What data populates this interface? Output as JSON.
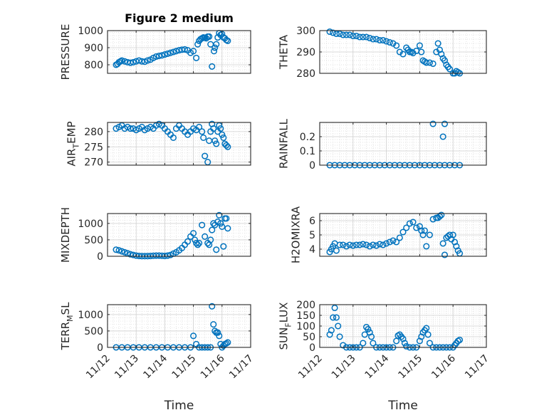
{
  "figure_title": "Figure 2 medium",
  "colors": {
    "marker": "#0072BD",
    "axis": "#262626",
    "grid": "#d9d9d9",
    "background": "#ffffff"
  },
  "chart_data": [
    {
      "type": "scatter",
      "ylabel": "PRESSURE",
      "title": "Figure 2 medium",
      "xlim": [
        0,
        5
      ],
      "ylim": [
        750,
        1000
      ],
      "yticks": [
        800,
        900,
        1000
      ],
      "ytick_labels": [
        "800",
        "900",
        "1000"
      ],
      "xtick_labels": [],
      "grid": true,
      "marker": "circle",
      "x": [
        0.3,
        0.35,
        0.4,
        0.45,
        0.5,
        0.6,
        0.7,
        0.8,
        0.9,
        1.0,
        1.1,
        1.2,
        1.3,
        1.4,
        1.5,
        1.6,
        1.7,
        1.8,
        1.9,
        2.0,
        2.1,
        2.2,
        2.3,
        2.4,
        2.5,
        2.6,
        2.7,
        2.8,
        2.9,
        3.0,
        3.1,
        3.15,
        3.2,
        3.25,
        3.3,
        3.35,
        3.4,
        3.45,
        3.5,
        3.55,
        3.6,
        3.65,
        3.7,
        3.72,
        3.75,
        3.8,
        3.85,
        3.9,
        3.95,
        4.0,
        4.05,
        4.1,
        4.15,
        4.2
      ],
      "y": [
        800,
        805,
        815,
        820,
        825,
        820,
        815,
        812,
        815,
        820,
        825,
        820,
        818,
        825,
        830,
        840,
        848,
        852,
        855,
        860,
        865,
        870,
        875,
        880,
        885,
        888,
        890,
        885,
        870,
        880,
        840,
        920,
        940,
        950,
        955,
        960,
        958,
        955,
        965,
        965,
        920,
        790,
        745,
        880,
        900,
        920,
        960,
        985,
        975,
        980,
        960,
        955,
        945,
        940
      ]
    },
    {
      "type": "scatter",
      "ylabel": "THETA",
      "xlim": [
        0,
        5
      ],
      "ylim": [
        280,
        300
      ],
      "yticks": [
        280,
        290,
        300
      ],
      "ytick_labels": [
        "280",
        "290",
        "300"
      ],
      "xtick_labels": [],
      "grid": true,
      "marker": "circle",
      "x": [
        0.3,
        0.4,
        0.5,
        0.6,
        0.7,
        0.8,
        0.9,
        1.0,
        1.1,
        1.2,
        1.3,
        1.4,
        1.5,
        1.6,
        1.7,
        1.8,
        1.9,
        2.0,
        2.1,
        2.2,
        2.3,
        2.4,
        2.5,
        2.6,
        2.65,
        2.7,
        2.75,
        2.8,
        2.9,
        3.0,
        3.05,
        3.1,
        3.15,
        3.2,
        3.3,
        3.4,
        3.5,
        3.55,
        3.6,
        3.65,
        3.7,
        3.75,
        3.8,
        3.85,
        3.9,
        4.0,
        4.05,
        4.1,
        4.15,
        4.2
      ],
      "y": [
        299.5,
        299,
        298.5,
        298.5,
        298,
        298,
        298,
        297.5,
        297.5,
        297,
        297,
        297,
        296.5,
        296,
        296,
        295.5,
        295.5,
        295,
        294.5,
        294,
        293,
        290,
        289,
        292,
        291,
        290,
        290,
        289.5,
        290.5,
        293,
        290,
        286,
        285.5,
        285,
        285,
        284.5,
        290,
        294,
        291,
        289,
        287,
        286,
        284,
        283,
        282,
        280,
        280,
        281,
        280.5,
        280
      ]
    },
    {
      "type": "scatter",
      "ylabel": "AIR_TEMP",
      "xlim": [
        0,
        5
      ],
      "ylim": [
        269,
        283
      ],
      "yticks": [
        270,
        275,
        280
      ],
      "ytick_labels": [
        "270",
        "275",
        "280"
      ],
      "xtick_labels": [],
      "grid": true,
      "marker": "circle",
      "x": [
        0.3,
        0.4,
        0.5,
        0.6,
        0.7,
        0.8,
        0.9,
        1.0,
        1.1,
        1.2,
        1.3,
        1.4,
        1.5,
        1.6,
        1.7,
        1.8,
        1.9,
        2.0,
        2.1,
        2.2,
        2.3,
        2.4,
        2.5,
        2.6,
        2.7,
        2.8,
        2.9,
        3.0,
        3.1,
        3.2,
        3.3,
        3.35,
        3.4,
        3.5,
        3.55,
        3.6,
        3.65,
        3.7,
        3.75,
        3.8,
        3.85,
        3.9,
        3.95,
        4.0,
        4.05,
        4.1,
        4.15,
        4.2
      ],
      "y": [
        281,
        281.5,
        282,
        281,
        281.5,
        281,
        281,
        280.5,
        281,
        281.5,
        280.5,
        281,
        281.5,
        281,
        282,
        282.5,
        282,
        281,
        280,
        279,
        278,
        281,
        282,
        281,
        280,
        279,
        280,
        281,
        280.5,
        281.5,
        280,
        278,
        272,
        270,
        277,
        280,
        282.5,
        281,
        277,
        276,
        280,
        282,
        281,
        279,
        278,
        276,
        275.5,
        275
      ]
    },
    {
      "type": "scatter",
      "ylabel": "RAINFALL",
      "xlim": [
        0,
        5
      ],
      "ylim": [
        0,
        0.3
      ],
      "yticks": [
        0,
        0.1,
        0.2
      ],
      "ytick_labels": [
        "0",
        "0.1",
        "0.2"
      ],
      "xtick_labels": [],
      "grid": true,
      "marker": "circle",
      "x": [
        0.3,
        0.45,
        0.6,
        0.75,
        0.9,
        1.05,
        1.2,
        1.35,
        1.5,
        1.65,
        1.8,
        1.95,
        2.1,
        2.25,
        2.4,
        2.55,
        2.7,
        2.85,
        3.0,
        3.15,
        3.3,
        3.45,
        3.6,
        3.75,
        3.9,
        4.05,
        4.2,
        3.4,
        3.7,
        3.75
      ],
      "y": [
        0,
        0,
        0,
        0,
        0,
        0,
        0,
        0,
        0,
        0,
        0,
        0,
        0,
        0,
        0,
        0,
        0,
        0,
        0,
        0,
        0,
        0,
        0,
        0,
        0,
        0,
        0,
        0.29,
        0.2,
        0.29
      ]
    },
    {
      "type": "scatter",
      "ylabel": "MIXDEPTH",
      "xlim": [
        0,
        5
      ],
      "ylim": [
        0,
        1300
      ],
      "yticks": [
        0,
        500,
        1000
      ],
      "ytick_labels": [
        "0",
        "500",
        "1000"
      ],
      "xtick_labels": [],
      "grid": true,
      "marker": "circle",
      "x": [
        0.3,
        0.4,
        0.5,
        0.6,
        0.7,
        0.8,
        0.9,
        1.0,
        1.1,
        1.2,
        1.3,
        1.4,
        1.5,
        1.6,
        1.7,
        1.8,
        1.9,
        2.0,
        2.1,
        2.2,
        2.3,
        2.4,
        2.5,
        2.6,
        2.7,
        2.8,
        2.9,
        3.0,
        3.05,
        3.1,
        3.15,
        3.2,
        3.3,
        3.4,
        3.5,
        3.55,
        3.6,
        3.65,
        3.7,
        3.75,
        3.8,
        3.85,
        3.9,
        3.95,
        4.0,
        4.05,
        4.1,
        4.15,
        4.2
      ],
      "y": [
        200,
        180,
        150,
        120,
        90,
        60,
        40,
        20,
        10,
        5,
        5,
        5,
        10,
        15,
        20,
        20,
        15,
        10,
        20,
        40,
        80,
        120,
        180,
        250,
        350,
        450,
        600,
        700,
        500,
        400,
        350,
        400,
        950,
        600,
        400,
        350,
        500,
        800,
        1000,
        950,
        200,
        1050,
        1250,
        1000,
        900,
        300,
        1150,
        1150,
        850
      ]
    },
    {
      "type": "scatter",
      "ylabel": "H2OMIXRA",
      "xlim": [
        0,
        5
      ],
      "ylim": [
        3.5,
        6.5
      ],
      "yticks": [
        4,
        5,
        6
      ],
      "ytick_labels": [
        "4",
        "5",
        "6"
      ],
      "xtick_labels": [],
      "grid": true,
      "marker": "circle",
      "x": [
        0.3,
        0.35,
        0.4,
        0.45,
        0.5,
        0.6,
        0.7,
        0.8,
        0.9,
        1.0,
        1.1,
        1.2,
        1.3,
        1.4,
        1.5,
        1.6,
        1.7,
        1.8,
        1.9,
        2.0,
        2.1,
        2.2,
        2.3,
        2.4,
        2.5,
        2.6,
        2.7,
        2.8,
        2.9,
        3.0,
        3.05,
        3.1,
        3.15,
        3.2,
        3.3,
        3.4,
        3.5,
        3.55,
        3.6,
        3.65,
        3.7,
        3.75,
        3.8,
        3.85,
        3.9,
        3.95,
        4.0,
        4.05,
        4.1,
        4.15,
        4.2
      ],
      "y": [
        3.8,
        4.0,
        4.2,
        4.4,
        3.9,
        4.3,
        4.3,
        4.2,
        4.3,
        4.25,
        4.3,
        4.3,
        4.35,
        4.3,
        4.2,
        4.3,
        4.25,
        4.35,
        4.3,
        4.4,
        4.5,
        4.6,
        4.5,
        4.8,
        5.2,
        5.5,
        5.8,
        5.9,
        5.5,
        5.6,
        5.3,
        5.0,
        5.3,
        4.2,
        5.0,
        6.1,
        6.2,
        6.2,
        6.3,
        6.4,
        4.4,
        3.6,
        4.8,
        4.9,
        5.0,
        4.7,
        5.0,
        4.5,
        4.2,
        3.9,
        3.7
      ]
    },
    {
      "type": "scatter",
      "ylabel": "TERR_MSL",
      "xlabel": "Time",
      "xlim": [
        0,
        5
      ],
      "ylim": [
        0,
        1300
      ],
      "yticks": [
        0,
        500,
        1000
      ],
      "ytick_labels": [
        "0",
        "500",
        "1000"
      ],
      "xticks": [
        0,
        1,
        2,
        3,
        4,
        5
      ],
      "xtick_labels": [
        "11/12",
        "11/13",
        "11/14",
        "11/15",
        "11/16",
        "11/17"
      ],
      "grid": true,
      "marker": "circle",
      "x": [
        0.3,
        0.5,
        0.7,
        0.9,
        1.1,
        1.3,
        1.5,
        1.7,
        1.9,
        2.1,
        2.3,
        2.5,
        2.7,
        2.9,
        3.0,
        3.1,
        3.2,
        3.3,
        3.4,
        3.5,
        3.6,
        3.65,
        3.7,
        3.75,
        3.8,
        3.85,
        3.9,
        3.95,
        4.0,
        4.05,
        4.1,
        4.15,
        4.2
      ],
      "y": [
        0,
        0,
        0,
        0,
        0,
        0,
        0,
        0,
        0,
        0,
        0,
        0,
        0,
        0,
        350,
        100,
        0,
        0,
        0,
        0,
        0,
        1250,
        700,
        500,
        450,
        450,
        350,
        100,
        0,
        50,
        100,
        120,
        150
      ]
    },
    {
      "type": "scatter",
      "ylabel": "SUN_FLUX",
      "xlabel": "Time",
      "xlim": [
        0,
        5
      ],
      "ylim": [
        0,
        200
      ],
      "yticks": [
        0,
        50,
        100,
        150,
        200
      ],
      "ytick_labels": [
        "0",
        "50",
        "100",
        "150",
        "200"
      ],
      "xticks": [
        0,
        1,
        2,
        3,
        4,
        5
      ],
      "xtick_labels": [
        "11/12",
        "11/13",
        "11/14",
        "11/15",
        "11/16",
        "11/17"
      ],
      "grid": true,
      "marker": "circle",
      "x": [
        0.3,
        0.35,
        0.4,
        0.45,
        0.5,
        0.55,
        0.6,
        0.7,
        0.8,
        0.9,
        1.0,
        1.1,
        1.2,
        1.3,
        1.35,
        1.4,
        1.45,
        1.5,
        1.55,
        1.6,
        1.7,
        1.8,
        1.9,
        2.0,
        2.1,
        2.2,
        2.3,
        2.35,
        2.4,
        2.45,
        2.5,
        2.55,
        2.6,
        2.7,
        2.8,
        2.9,
        3.0,
        3.05,
        3.1,
        3.15,
        3.2,
        3.25,
        3.3,
        3.4,
        3.5,
        3.6,
        3.7,
        3.8,
        3.9,
        4.0,
        4.05,
        4.1,
        4.15,
        4.2
      ],
      "y": [
        60,
        80,
        140,
        185,
        140,
        100,
        50,
        10,
        0,
        0,
        0,
        0,
        0,
        20,
        60,
        95,
        85,
        70,
        50,
        20,
        0,
        0,
        0,
        0,
        0,
        0,
        30,
        55,
        60,
        50,
        40,
        20,
        5,
        0,
        0,
        0,
        30,
        50,
        70,
        80,
        90,
        60,
        20,
        0,
        0,
        0,
        0,
        0,
        0,
        0,
        10,
        20,
        30,
        35
      ]
    }
  ]
}
